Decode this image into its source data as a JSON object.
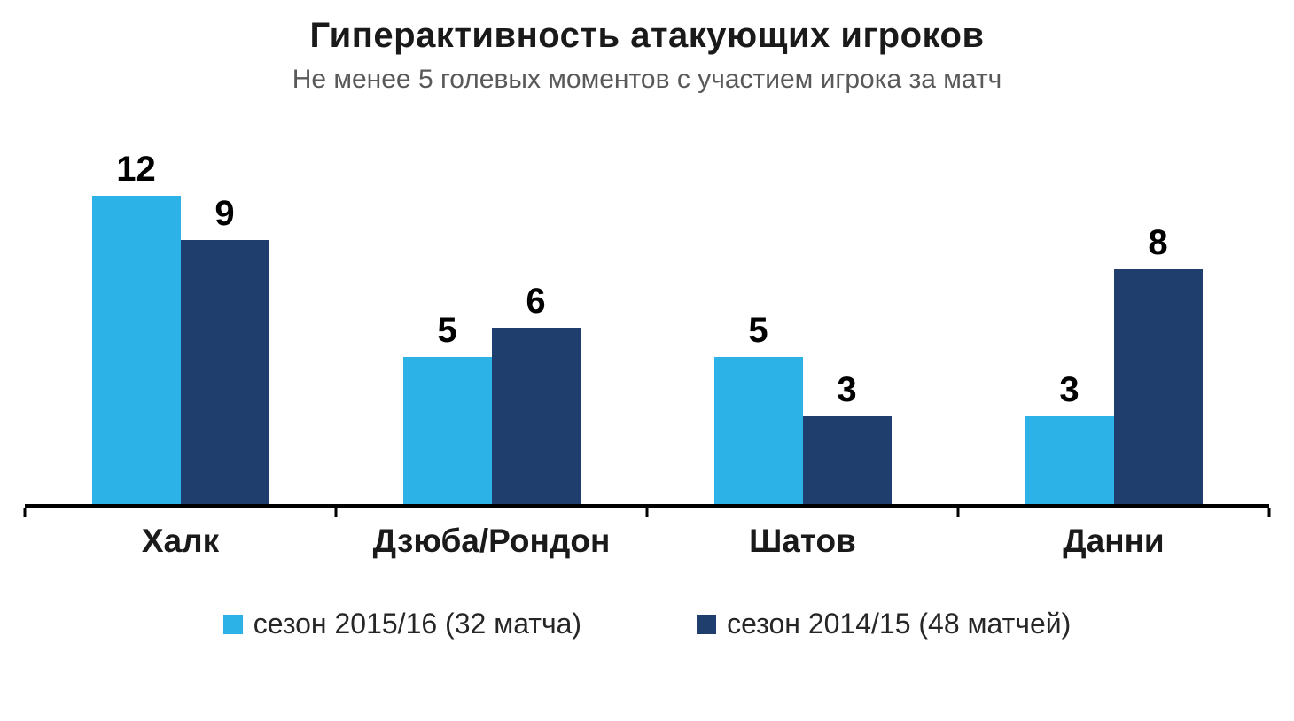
{
  "chart_data": {
    "type": "bar",
    "title": "Гиперактивность атакующих игроков",
    "subtitle": "Не менее 5 голевых моментов с участием игрока за матч",
    "categories": [
      "Халк",
      "Дзюба/Рондон",
      "Шатов",
      "Данни"
    ],
    "series": [
      {
        "name": "сезон 2015/16 (32 матча)",
        "color": "#2db2e7",
        "values": [
          12,
          5,
          5,
          3
        ]
      },
      {
        "name": "сезон 2014/15 (48 матчей)",
        "color": "#1f3e6d",
        "values": [
          9,
          6,
          3,
          8
        ]
      }
    ],
    "ylim": [
      0,
      12
    ],
    "grid": false,
    "legend_position": "bottom",
    "data_labels": true,
    "axis_color": "#000000",
    "background_color": "#ffffff"
  }
}
